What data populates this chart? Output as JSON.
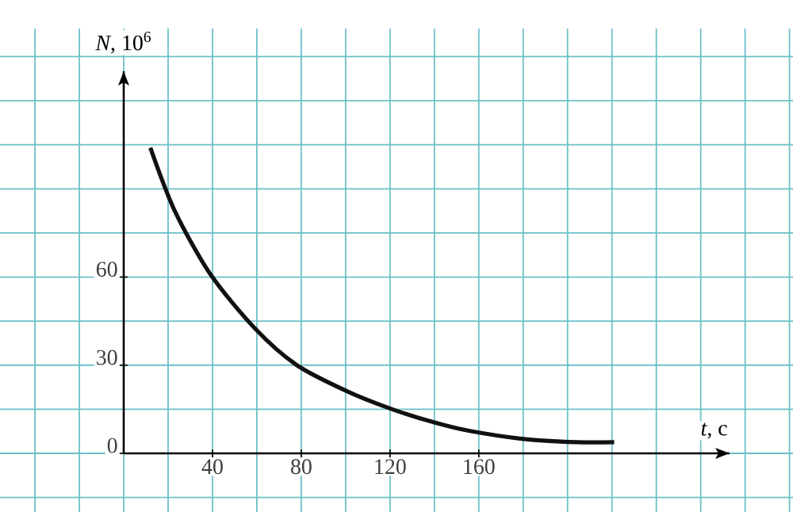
{
  "chart_data": {
    "type": "line",
    "xlabel": "*t*, c",
    "ylabel": "*N*, 10$^{6}$",
    "xlim": [
      0,
      273
    ],
    "ylim": [
      0,
      130
    ],
    "xticks": [
      40,
      80,
      120,
      160
    ],
    "yticks": [
      0,
      30,
      60
    ],
    "grid": true,
    "marker": "none",
    "line_style": "solid",
    "series": [
      {
        "color": "#111111",
        "x": [
          12,
          23,
          39,
          59,
          78,
          101,
          121,
          140,
          156,
          180,
          204,
          221
        ],
        "values": [
          104,
          82.5,
          61,
          42.6,
          30,
          21,
          15,
          10.5,
          7.6,
          4.9,
          3.8,
          3.8
        ]
      }
    ]
  }
}
